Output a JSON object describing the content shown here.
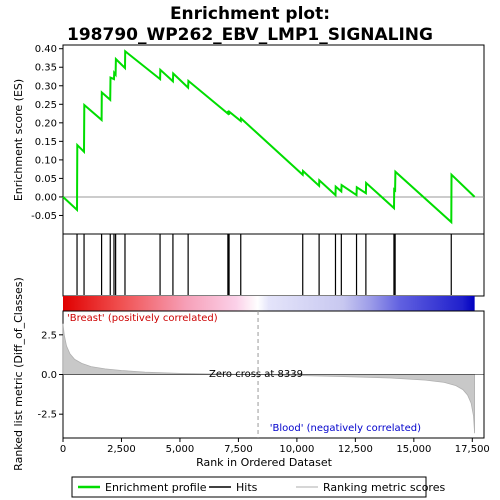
{
  "chart_data": {
    "type": "line",
    "title_line1": "Enrichment plot:",
    "title_line2": "198790_WP262_EBV_LMP1_SIGNALING",
    "es_panel": {
      "ylabel": "Enrichment score (ES)",
      "ylim": [
        -0.1,
        0.41
      ],
      "yticks": [
        -0.05,
        0.0,
        0.05,
        0.1,
        0.15,
        0.2,
        0.25,
        0.3,
        0.35,
        0.4
      ],
      "ytick_labels": [
        "-0.05",
        "0.00",
        "0.05",
        "0.10",
        "0.15",
        "0.20",
        "0.25",
        "0.30",
        "0.35",
        "0.40"
      ],
      "series": [
        {
          "name": "Enrichment profile",
          "color": "#00dd00",
          "x": [
            0,
            600,
            610,
            900,
            910,
            1650,
            1660,
            2020,
            2030,
            2180,
            2190,
            2250,
            2260,
            2650,
            2660,
            4150,
            4160,
            4700,
            4710,
            5350,
            5360,
            7050,
            7060,
            7100,
            7110,
            7600,
            7610,
            10250,
            10260,
            10950,
            10960,
            11650,
            11660,
            11900,
            11910,
            12550,
            12560,
            12950,
            12960,
            14150,
            14160,
            14200,
            14210,
            16600,
            16610,
            17600
          ],
          "y": [
            0.0,
            -0.035,
            0.14,
            0.122,
            0.248,
            0.208,
            0.282,
            0.262,
            0.322,
            0.318,
            0.335,
            0.33,
            0.372,
            0.348,
            0.393,
            0.318,
            0.343,
            0.312,
            0.333,
            0.295,
            0.313,
            0.225,
            0.232,
            0.222,
            0.23,
            0.205,
            0.212,
            0.06,
            0.07,
            0.03,
            0.045,
            0.005,
            0.028,
            0.015,
            0.032,
            0.005,
            0.026,
            0.01,
            0.038,
            -0.03,
            0.02,
            0.018,
            0.068,
            -0.068,
            0.06,
            0.0
          ]
        }
      ]
    },
    "hits": [
      600,
      900,
      1650,
      2020,
      2180,
      2250,
      2650,
      4150,
      4700,
      5350,
      7050,
      7100,
      7600,
      10250,
      10950,
      11650,
      11900,
      12550,
      12950,
      14150,
      14200,
      16600
    ],
    "ranking_panel": {
      "ylabel": "Ranked list metric (Diff_of_Classes)",
      "xlabel": "Rank in Ordered Dataset",
      "xlim": [
        0,
        18000
      ],
      "ylim": [
        -4.0,
        4.0
      ],
      "xticks": [
        0,
        2500,
        5000,
        7500,
        10000,
        12500,
        15000,
        17500
      ],
      "xtick_labels": [
        "0",
        "2,500",
        "5,000",
        "7,500",
        "10,000",
        "12,500",
        "15,000",
        "17,500"
      ],
      "yticks": [
        -2.5,
        0.0,
        2.5
      ],
      "ytick_labels": [
        "-2.5",
        "0.0",
        "2.5"
      ],
      "zero_cross_label": "Zero cross at 8339",
      "zero_cross": 8339,
      "positive_label": "'Breast' (positively correlated)",
      "negative_label": "'Blood' (negatively correlated)",
      "metric_profile": {
        "x": [
          0,
          50,
          150,
          300,
          500,
          800,
          1200,
          1800,
          2500,
          3500,
          5000,
          6500,
          8339,
          10000,
          12000,
          14000,
          15500,
          16300,
          16800,
          17100,
          17300,
          17450,
          17550,
          17600
        ],
        "y": [
          3.2,
          2.5,
          1.8,
          1.3,
          0.95,
          0.7,
          0.5,
          0.35,
          0.25,
          0.15,
          0.07,
          0.03,
          0.0,
          -0.06,
          -0.13,
          -0.22,
          -0.35,
          -0.5,
          -0.7,
          -0.95,
          -1.3,
          -1.8,
          -2.6,
          -3.7
        ]
      }
    },
    "legend": [
      {
        "label": "Enrichment profile",
        "color": "#00dd00"
      },
      {
        "label": "Hits",
        "color": "#000000"
      },
      {
        "label": "Ranking metric scores",
        "color": "#c8c8c8"
      }
    ]
  }
}
